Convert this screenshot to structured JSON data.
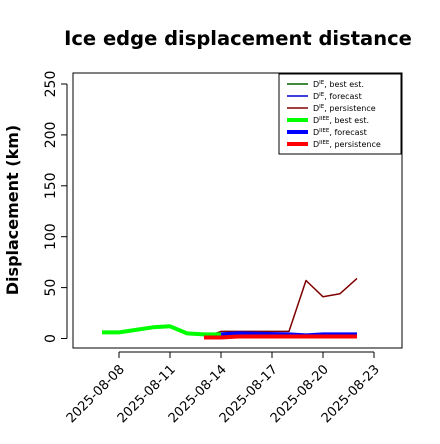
{
  "chart_data": {
    "type": "line",
    "title": "Ice edge displacement distance",
    "xlabel": "",
    "ylabel": "Displacement (km)",
    "ylim": [
      0,
      260
    ],
    "yticks": [
      0,
      50,
      100,
      150,
      200,
      250
    ],
    "ytick_labels": [
      "0",
      "50",
      "100",
      "150",
      "200",
      "250"
    ],
    "xlim": [
      "2025-08-05",
      "2025-08-24"
    ],
    "xticks": [
      "2025-08-08",
      "2025-08-11",
      "2025-08-14",
      "2025-08-17",
      "2025-08-20",
      "2025-08-23"
    ],
    "xtick_labels": [
      "2025-08-08",
      "2025-08-11",
      "2025-08-14",
      "2025-08-17",
      "2025-08-20",
      "2025-08-23"
    ],
    "highlighted_xtick": "2025-08-14",
    "highlight_color": "#228B22",
    "grid": false,
    "legend_position": "top-right",
    "series": [
      {
        "name": "D^IE, best est.",
        "color": "#006400",
        "thick": false,
        "x": [],
        "y": []
      },
      {
        "name": "D^IE, forecast",
        "color": "#0000CD",
        "thick": false,
        "x": [],
        "y": []
      },
      {
        "name": "D^IE, persistence",
        "color": "#800000",
        "thick": false,
        "x": [
          "2025-08-13",
          "2025-08-14",
          "2025-08-18",
          "2025-08-19",
          "2025-08-20",
          "2025-08-21",
          "2025-08-22"
        ],
        "y": [
          1,
          7,
          7,
          57,
          41,
          44,
          59
        ]
      },
      {
        "name": "D^IIEE, best est.",
        "color": "#00FF00",
        "thick": true,
        "x": [
          "2025-08-07",
          "2025-08-08",
          "2025-08-10",
          "2025-08-11",
          "2025-08-12",
          "2025-08-13",
          "2025-08-14"
        ],
        "y": [
          6,
          6,
          11,
          12,
          5,
          4,
          4
        ]
      },
      {
        "name": "D^IIEE, forecast",
        "color": "#0000FF",
        "thick": true,
        "x": [
          "2025-08-14",
          "2025-08-15",
          "2025-08-18",
          "2025-08-19",
          "2025-08-20",
          "2025-08-21",
          "2025-08-22"
        ],
        "y": [
          4,
          5,
          4,
          3,
          4,
          4,
          4
        ]
      },
      {
        "name": "D^IIEE, persistence",
        "color": "#FF0000",
        "thick": true,
        "x": [
          "2025-08-13",
          "2025-08-14",
          "2025-08-15",
          "2025-08-18",
          "2025-08-19",
          "2025-08-20",
          "2025-08-21",
          "2025-08-22"
        ],
        "y": [
          1,
          1,
          2,
          2,
          2,
          2,
          2,
          2
        ]
      }
    ],
    "legend": [
      {
        "main": "D",
        "sup": "IE",
        "rest": ", best est."
      },
      {
        "main": "D",
        "sup": "IE",
        "rest": ", forecast"
      },
      {
        "main": "D",
        "sup": "IE",
        "rest": ", persistence"
      },
      {
        "main": "D",
        "sup": "IIEE",
        "rest": ", best est."
      },
      {
        "main": "D",
        "sup": "IIEE",
        "rest": ", forecast"
      },
      {
        "main": "D",
        "sup": "IIEE",
        "rest": ", persistence"
      }
    ]
  }
}
